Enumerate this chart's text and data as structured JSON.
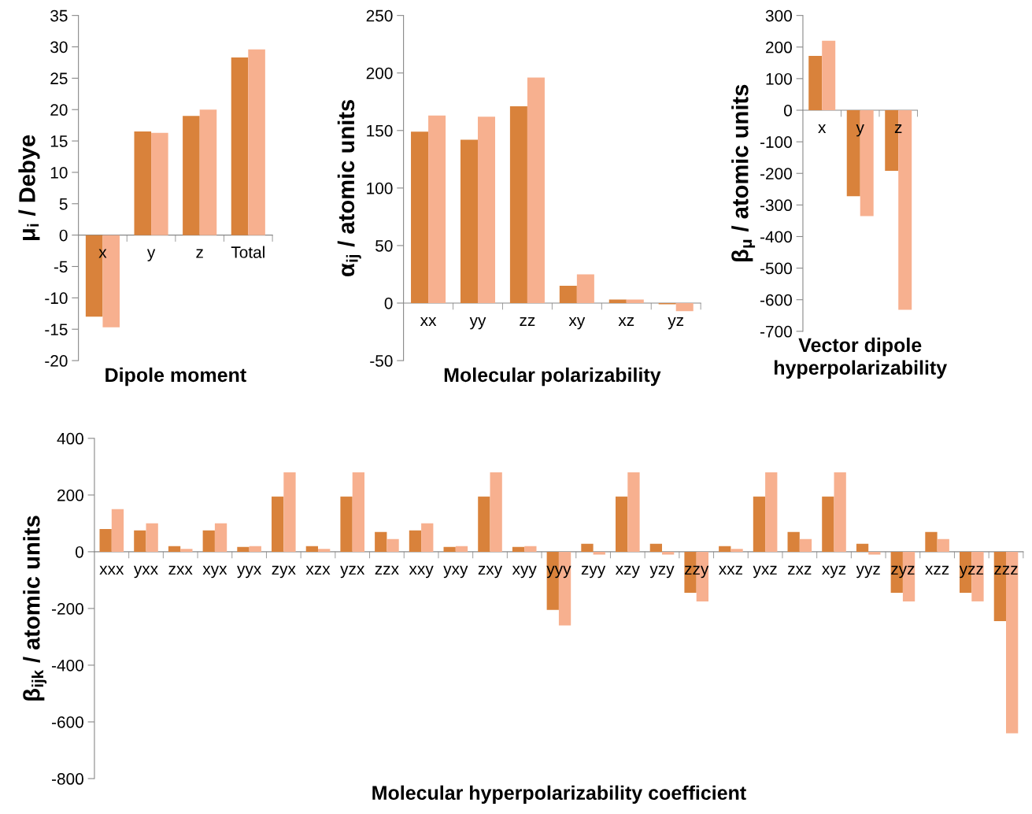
{
  "chart_data": [
    {
      "type": "bar",
      "xlabel": "Dipole moment",
      "ylabel": "μ$_{i}$ / Debye",
      "categories": [
        "x",
        "y",
        "z",
        "Total"
      ],
      "ylim": [
        -20,
        35
      ],
      "yticks": [
        -20,
        -15,
        -10,
        -5,
        0,
        5,
        10,
        15,
        20,
        25,
        30,
        35
      ],
      "grid": false,
      "series": [
        {
          "color": "#d9823b",
          "values": [
            -13,
            16.5,
            19,
            28.3
          ]
        },
        {
          "color": "#f7b08f",
          "values": [
            -14.7,
            16.3,
            20,
            29.6
          ]
        }
      ]
    },
    {
      "type": "bar",
      "xlabel": "Molecular polarizability",
      "ylabel": "α$_{ij}$ / atomic units",
      "categories": [
        "xx",
        "yy",
        "zz",
        "xy",
        "xz",
        "yz"
      ],
      "ylim": [
        -50,
        250
      ],
      "yticks": [
        -50,
        0,
        50,
        100,
        150,
        200,
        250
      ],
      "grid": false,
      "series": [
        {
          "color": "#d9823b",
          "values": [
            149,
            142,
            171,
            15,
            3,
            -1
          ]
        },
        {
          "color": "#f7b08f",
          "values": [
            163,
            162,
            196,
            25,
            3,
            -7
          ]
        }
      ]
    },
    {
      "type": "bar",
      "xlabel": "Vector dipole\nhyperpolarizability",
      "ylabel": "β$_{μ}$ / atomic units",
      "categories": [
        "x",
        "y",
        "z"
      ],
      "ylim": [
        -700,
        300
      ],
      "yticks": [
        -700,
        -600,
        -500,
        -400,
        -300,
        -200,
        -100,
        0,
        100,
        200,
        300
      ],
      "grid": false,
      "series": [
        {
          "color": "#d9823b",
          "values": [
            172,
            -272,
            -192
          ]
        },
        {
          "color": "#f7b08f",
          "values": [
            220,
            -335,
            -632
          ]
        }
      ]
    },
    {
      "type": "bar",
      "xlabel": "Molecular hyperpolarizability coefficient",
      "ylabel": "β$_{ijk}$ / atomic units",
      "categories": [
        "xxx",
        "yxx",
        "zxx",
        "xyx",
        "yyx",
        "zyx",
        "xzx",
        "yzx",
        "zzx",
        "xxy",
        "yxy",
        "zxy",
        "xyy",
        "yyy",
        "zyy",
        "xzy",
        "yzy",
        "zzy",
        "xxz",
        "yxz",
        "zxz",
        "xyz",
        "yyz",
        "zyz",
        "xzz",
        "yzz",
        "zzz"
      ],
      "ylim": [
        -800,
        400
      ],
      "yticks": [
        -800,
        -600,
        -400,
        -200,
        0,
        200,
        400
      ],
      "grid": false,
      "series": [
        {
          "color": "#d9823b",
          "values": [
            80,
            75,
            20,
            75,
            17,
            195,
            20,
            195,
            70,
            75,
            17,
            195,
            17,
            -205,
            28,
            195,
            28,
            -145,
            20,
            195,
            70,
            195,
            28,
            -145,
            70,
            -145,
            -245
          ]
        },
        {
          "color": "#f7b08f",
          "values": [
            150,
            100,
            10,
            100,
            20,
            280,
            10,
            280,
            45,
            100,
            20,
            280,
            20,
            -260,
            -10,
            280,
            -10,
            -175,
            10,
            280,
            45,
            280,
            -10,
            -175,
            45,
            -175,
            -640
          ]
        }
      ]
    }
  ]
}
